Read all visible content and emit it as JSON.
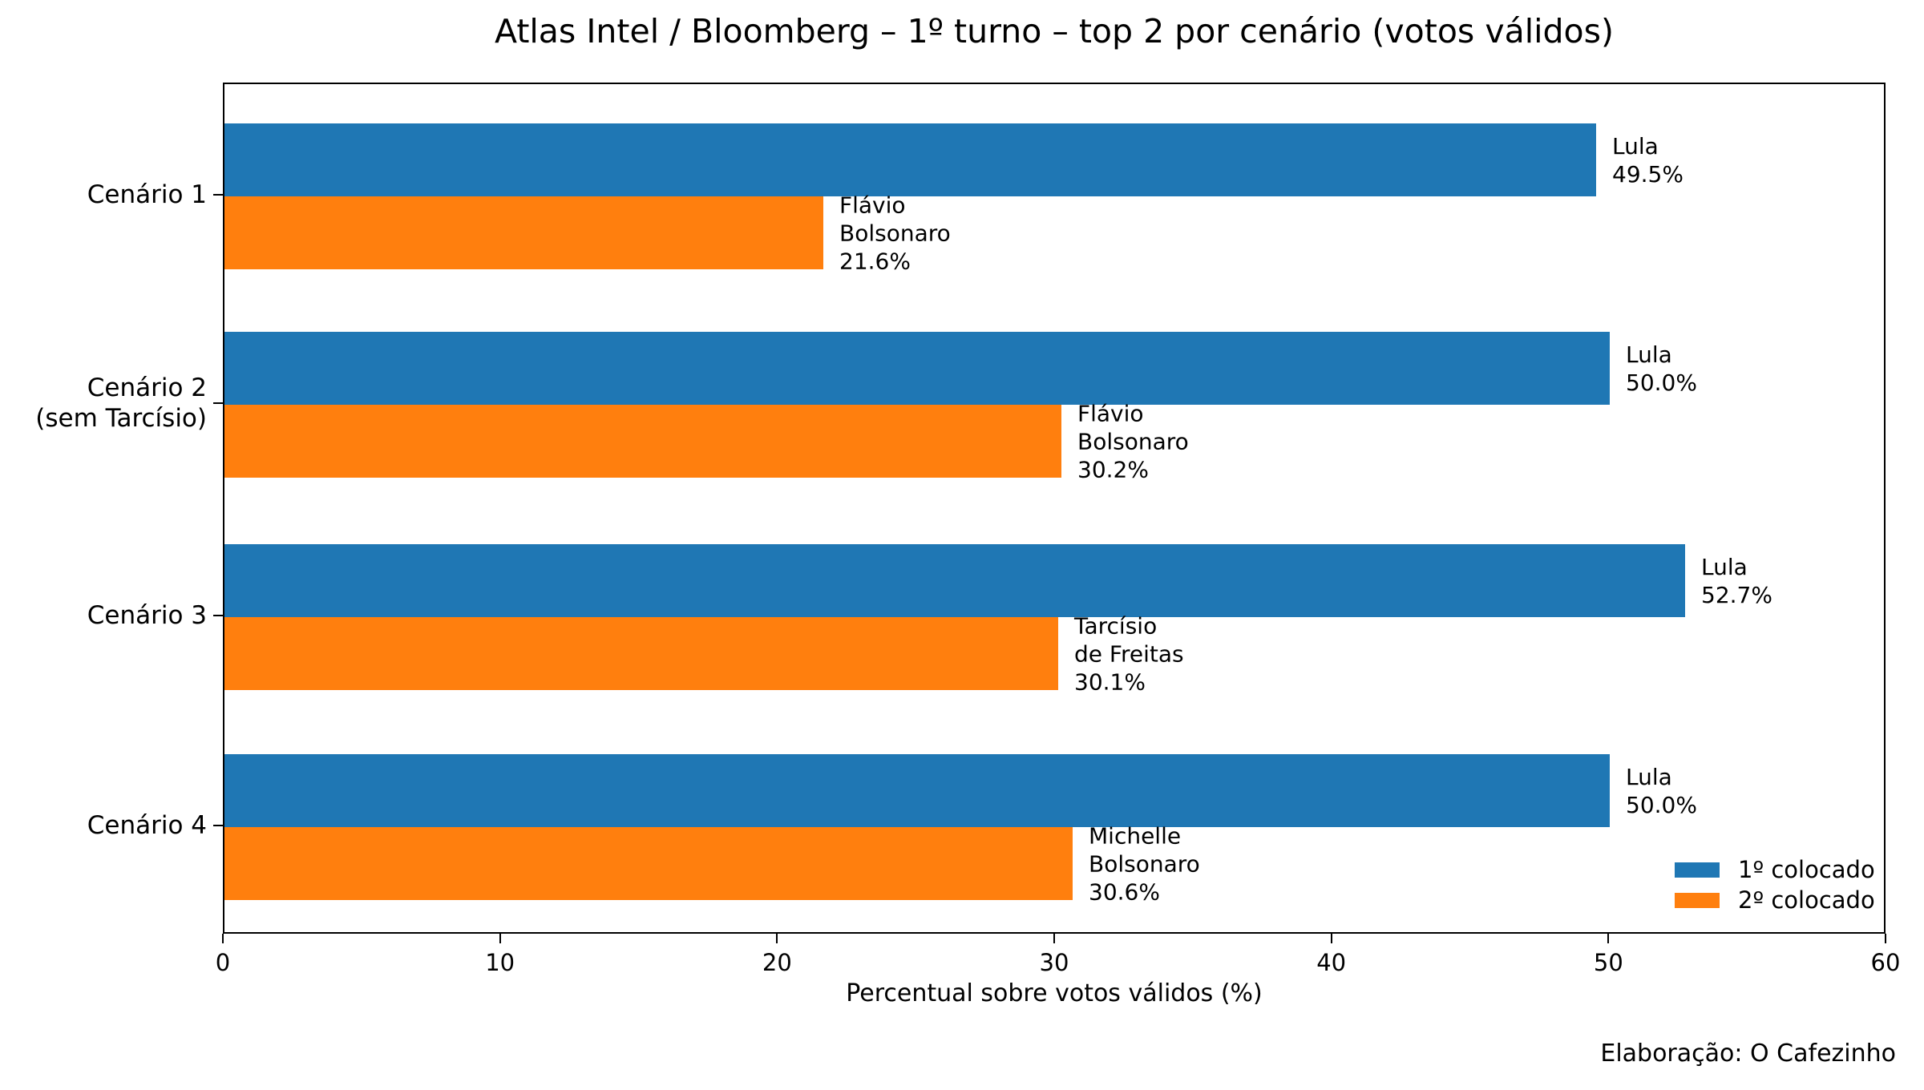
{
  "title": "Atlas Intel / Bloomberg – 1º turno – top 2 por cenário (votos válidos)",
  "footer": "Elaboração: O Cafezinho",
  "colors": {
    "first_place": "#1f77b4",
    "second_place": "#ff7f0e",
    "axis": "#000000",
    "background": "#ffffff"
  },
  "legend": {
    "position": "lower right",
    "items": [
      {
        "label": "1º colocado",
        "color": "#1f77b4"
      },
      {
        "label": "2º colocado",
        "color": "#ff7f0e"
      }
    ]
  },
  "chart_data": {
    "type": "bar",
    "orientation": "horizontal",
    "title": "Atlas Intel / Bloomberg – 1º turno – top 2 por cenário (votos válidos)",
    "xlabel": "Percentual sobre votos válidos (%)",
    "ylabel": "",
    "xlim": [
      0,
      60
    ],
    "xticks": [
      0,
      10,
      20,
      30,
      40,
      50,
      60
    ],
    "grid": false,
    "legend_position": "lower right",
    "categories": [
      "Cenário 1",
      "Cenário 2\n(sem Tarcísio)",
      "Cenário 3",
      "Cenário 4"
    ],
    "series": [
      {
        "name": "1º colocado",
        "color": "#1f77b4",
        "values": [
          49.5,
          50.0,
          52.7,
          50.0
        ],
        "bar_labels": [
          "Lula\n49.5%",
          "Lula\n50.0%",
          "Lula\n52.7%",
          "Lula\n50.0%"
        ]
      },
      {
        "name": "2º colocado",
        "color": "#ff7f0e",
        "values": [
          21.6,
          30.2,
          30.1,
          30.6
        ],
        "bar_labels": [
          "Flávio\nBolsonaro\n21.6%",
          "Flávio\nBolsonaro\n30.2%",
          "Tarcísio\nde Freitas\n30.1%",
          "Michelle\nBolsonaro\n30.6%"
        ]
      }
    ]
  }
}
